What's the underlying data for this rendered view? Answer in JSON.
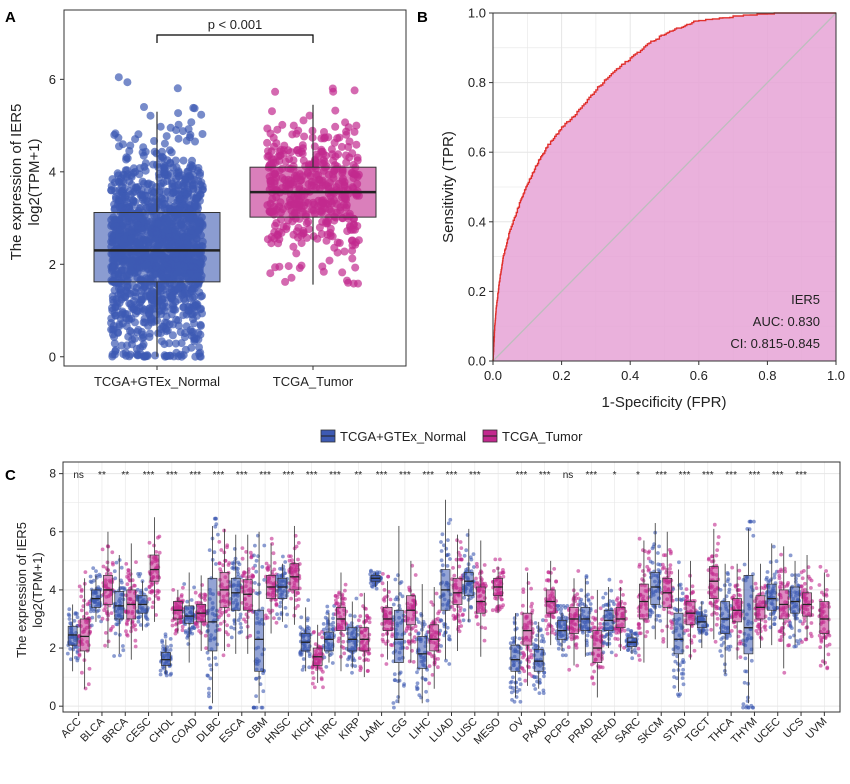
{
  "colors": {
    "normal": "#3d5ab3",
    "tumor": "#c2298e",
    "roc_line": "#e0302c",
    "roc_fill": "#e6a3d6",
    "diag": "#bdbdbd",
    "grid": "#e6e6e6"
  },
  "panels": {
    "a": "A",
    "b": "B",
    "c": "C"
  },
  "chart_data": [
    {
      "type": "box",
      "panel": "A",
      "ylabel_line1": "The expression of IER5",
      "ylabel_line2": "log2(TPM+1)",
      "categories": [
        "TCGA+GTEx_Normal",
        "TCGA_Tumor"
      ],
      "yticks": [
        0,
        2,
        4,
        6
      ],
      "ylim": [
        -0.2,
        7.5
      ],
      "annotation": "p < 0.001",
      "boxes": [
        {
          "name": "TCGA+GTEx_Normal",
          "q1": 1.62,
          "median": 2.3,
          "q3": 3.12,
          "lower": 0.0,
          "upper": 5.3,
          "point_min": 0.0,
          "point_max": 6.05,
          "n_points": 1400
        },
        {
          "name": "TCGA_Tumor",
          "q1": 3.02,
          "median": 3.56,
          "q3": 4.1,
          "lower": 1.56,
          "upper": 5.45,
          "point_min": 1.55,
          "point_max": 5.85,
          "n_points": 420
        }
      ]
    },
    {
      "type": "roc",
      "panel": "B",
      "xlabel": "1-Specificity (FPR)",
      "ylabel": "Sensitivity (TPR)",
      "xlim": [
        0,
        1
      ],
      "ylim": [
        0,
        1
      ],
      "ticks": [
        "0.0",
        "0.2",
        "0.4",
        "0.6",
        "0.8",
        "1.0"
      ],
      "grid": true,
      "curve": [
        [
          0,
          0
        ],
        [
          0.005,
          0.1
        ],
        [
          0.01,
          0.16
        ],
        [
          0.02,
          0.24
        ],
        [
          0.03,
          0.3
        ],
        [
          0.05,
          0.38
        ],
        [
          0.08,
          0.46
        ],
        [
          0.1,
          0.51
        ],
        [
          0.13,
          0.57
        ],
        [
          0.16,
          0.62
        ],
        [
          0.2,
          0.67
        ],
        [
          0.25,
          0.72
        ],
        [
          0.3,
          0.78
        ],
        [
          0.35,
          0.83
        ],
        [
          0.4,
          0.87
        ],
        [
          0.45,
          0.91
        ],
        [
          0.5,
          0.94
        ],
        [
          0.55,
          0.96
        ],
        [
          0.6,
          0.98
        ],
        [
          0.7,
          0.99
        ],
        [
          0.8,
          0.997
        ],
        [
          0.9,
          1.0
        ],
        [
          1.0,
          1.0
        ]
      ],
      "legend_lines": [
        "IER5",
        "AUC: 0.830",
        "CI: 0.815-0.845"
      ]
    },
    {
      "type": "grouped-box",
      "panel": "C",
      "legend": [
        "TCGA+GTEx_Normal",
        "TCGA_Tumor"
      ],
      "ylabel_line1": "The expression of IER5",
      "ylabel_line2": "log2(TPM+1)",
      "yticks": [
        0,
        2,
        4,
        6,
        8
      ],
      "ylim": [
        -0.2,
        8.4
      ],
      "categories": [
        "ACC",
        "BLCA",
        "BRCA",
        "CESC",
        "CHOL",
        "COAD",
        "DLBC",
        "ESCA",
        "GBM",
        "HNSC",
        "KICH",
        "KIRC",
        "KIRP",
        "LAML",
        "LGG",
        "LIHC",
        "LUAD",
        "LUSC",
        "MESO",
        "OV",
        "PAAD",
        "PCPG",
        "PRAD",
        "READ",
        "SARC",
        "SKCM",
        "STAD",
        "TGCT",
        "THCA",
        "THYM",
        "UCEC",
        "UCS",
        "UVM"
      ],
      "significance": [
        "ns",
        "**",
        "**",
        "***",
        "***",
        "***",
        "***",
        "***",
        "***",
        "***",
        "***",
        "***",
        "**",
        "***",
        "***",
        "***",
        "***",
        "***",
        "",
        "***",
        "***",
        "ns",
        "***",
        "*",
        "*",
        "***",
        "***",
        "***",
        "***",
        "***",
        "***",
        "***",
        ""
      ],
      "normal": [
        {
          "q1": 2.1,
          "median": 2.45,
          "q3": 2.75,
          "lower": 1.2,
          "upper": 3.5
        },
        {
          "q1": 3.4,
          "median": 3.7,
          "q3": 4.0,
          "lower": 2.9,
          "upper": 4.5
        },
        {
          "q1": 3.0,
          "median": 3.45,
          "q3": 3.95,
          "lower": 1.8,
          "upper": 5.2
        },
        {
          "q1": 3.2,
          "median": 3.5,
          "q3": 3.8,
          "lower": 2.6,
          "upper": 4.3
        },
        {
          "q1": 1.4,
          "median": 1.6,
          "q3": 1.85,
          "lower": 1.1,
          "upper": 2.3
        },
        {
          "q1": 2.85,
          "median": 3.1,
          "q3": 3.45,
          "lower": 1.5,
          "upper": 4.6
        },
        {
          "q1": 1.9,
          "median": 2.9,
          "q3": 4.4,
          "lower": 0.1,
          "upper": 6.2
        },
        {
          "q1": 3.3,
          "median": 3.9,
          "q3": 4.4,
          "lower": 1.8,
          "upper": 5.9
        },
        {
          "q1": 1.2,
          "median": 2.3,
          "q3": 3.3,
          "lower": 0.1,
          "upper": 6.0
        },
        {
          "q1": 3.7,
          "median": 4.1,
          "q3": 4.4,
          "lower": 2.9,
          "upper": 4.9
        },
        {
          "q1": 1.9,
          "median": 2.2,
          "q3": 2.5,
          "lower": 1.2,
          "upper": 3.4
        },
        {
          "q1": 1.9,
          "median": 2.3,
          "q3": 2.55,
          "lower": 1.5,
          "upper": 3.2
        },
        {
          "q1": 1.9,
          "median": 2.3,
          "q3": 2.7,
          "lower": 1.3,
          "upper": 3.6
        },
        {
          "q1": 4.3,
          "median": 4.4,
          "q3": 4.5,
          "lower": 4.1,
          "upper": 4.6
        },
        {
          "q1": 1.5,
          "median": 2.3,
          "q3": 3.3,
          "lower": 0.1,
          "upper": 6.2
        },
        {
          "q1": 1.3,
          "median": 1.8,
          "q3": 2.4,
          "lower": 0.1,
          "upper": 4.2
        },
        {
          "q1": 3.3,
          "median": 4.0,
          "q3": 4.7,
          "lower": 1.6,
          "upper": 7.1
        },
        {
          "q1": 3.8,
          "median": 4.3,
          "q3": 4.6,
          "lower": 2.9,
          "upper": 6.1
        },
        null,
        {
          "q1": 1.2,
          "median": 1.6,
          "q3": 2.1,
          "lower": 0.3,
          "upper": 3.2
        },
        {
          "q1": 1.2,
          "median": 1.55,
          "q3": 1.95,
          "lower": 0.6,
          "upper": 2.9
        },
        {
          "q1": 2.3,
          "median": 2.6,
          "q3": 2.95,
          "lower": 1.9,
          "upper": 3.2
        },
        {
          "q1": 2.6,
          "median": 3.0,
          "q3": 3.4,
          "lower": 1.7,
          "upper": 4.4
        },
        {
          "q1": 2.6,
          "median": 2.95,
          "q3": 3.3,
          "lower": 2.0,
          "upper": 4.1
        },
        {
          "q1": 2.05,
          "median": 2.2,
          "q3": 2.35,
          "lower": 1.8,
          "upper": 2.5
        },
        {
          "q1": 3.5,
          "median": 4.1,
          "q3": 4.6,
          "lower": 2.3,
          "upper": 6.3
        },
        {
          "q1": 1.8,
          "median": 2.3,
          "q3": 3.2,
          "lower": 0.5,
          "upper": 4.7
        },
        {
          "q1": 2.7,
          "median": 2.9,
          "q3": 3.1,
          "lower": 2.0,
          "upper": 3.6
        },
        {
          "q1": 2.5,
          "median": 3.0,
          "q3": 3.6,
          "lower": 1.1,
          "upper": 4.9
        },
        {
          "q1": 1.8,
          "median": 2.7,
          "q3": 4.5,
          "lower": 0.1,
          "upper": 6.1
        },
        {
          "q1": 3.3,
          "median": 3.7,
          "q3": 4.2,
          "lower": 2.1,
          "upper": 5.6
        },
        {
          "q1": 3.2,
          "median": 3.6,
          "q3": 4.1,
          "lower": 2.1,
          "upper": 5.0
        },
        null
      ],
      "tumor": [
        {
          "q1": 1.9,
          "median": 2.4,
          "q3": 3.0,
          "lower": 0.6,
          "upper": 4.4
        },
        {
          "q1": 3.5,
          "median": 4.0,
          "q3": 4.5,
          "lower": 2.0,
          "upper": 6.0
        },
        {
          "q1": 3.0,
          "median": 3.5,
          "q3": 4.0,
          "lower": 1.6,
          "upper": 5.6
        },
        {
          "q1": 4.3,
          "median": 4.7,
          "q3": 5.2,
          "lower": 2.9,
          "upper": 6.5
        },
        {
          "q1": 3.0,
          "median": 3.3,
          "q3": 3.6,
          "lower": 2.5,
          "upper": 4.0
        },
        {
          "q1": 2.9,
          "median": 3.2,
          "q3": 3.5,
          "lower": 1.9,
          "upper": 4.5
        },
        {
          "q1": 3.4,
          "median": 4.0,
          "q3": 4.6,
          "lower": 1.9,
          "upper": 6.1
        },
        {
          "q1": 3.3,
          "median": 3.85,
          "q3": 4.35,
          "lower": 1.8,
          "upper": 5.9
        },
        {
          "q1": 3.7,
          "median": 4.1,
          "q3": 4.5,
          "lower": 2.5,
          "upper": 5.6
        },
        {
          "q1": 4.0,
          "median": 4.45,
          "q3": 4.9,
          "lower": 2.8,
          "upper": 6.2
        },
        {
          "q1": 1.4,
          "median": 1.7,
          "q3": 2.0,
          "lower": 0.8,
          "upper": 2.8
        },
        {
          "q1": 2.6,
          "median": 3.0,
          "q3": 3.4,
          "lower": 1.2,
          "upper": 4.6
        },
        {
          "q1": 1.9,
          "median": 2.3,
          "q3": 2.7,
          "lower": 1.0,
          "upper": 3.9
        },
        {
          "q1": 2.6,
          "median": 3.0,
          "q3": 3.4,
          "lower": 1.6,
          "upper": 4.3
        },
        {
          "q1": 2.8,
          "median": 3.3,
          "q3": 3.8,
          "lower": 1.5,
          "upper": 5.0
        },
        {
          "q1": 1.9,
          "median": 2.3,
          "q3": 2.8,
          "lower": 0.6,
          "upper": 4.1
        },
        {
          "q1": 3.5,
          "median": 3.9,
          "q3": 4.4,
          "lower": 1.9,
          "upper": 5.9
        },
        {
          "q1": 3.2,
          "median": 3.6,
          "q3": 4.1,
          "lower": 1.7,
          "upper": 5.7
        },
        {
          "q1": 3.8,
          "median": 4.1,
          "q3": 4.4,
          "lower": 3.2,
          "upper": 4.8
        },
        {
          "q1": 2.1,
          "median": 2.6,
          "q3": 3.2,
          "lower": 0.7,
          "upper": 4.6
        },
        {
          "q1": 3.2,
          "median": 3.6,
          "q3": 4.0,
          "lower": 2.1,
          "upper": 5.0
        },
        {
          "q1": 2.5,
          "median": 3.0,
          "q3": 3.4,
          "lower": 1.4,
          "upper": 4.4
        },
        {
          "q1": 1.5,
          "median": 2.0,
          "q3": 2.6,
          "lower": 0.3,
          "upper": 4.0
        },
        {
          "q1": 2.7,
          "median": 3.0,
          "q3": 3.4,
          "lower": 1.9,
          "upper": 4.1
        },
        {
          "q1": 3.0,
          "median": 3.6,
          "q3": 4.2,
          "lower": 1.5,
          "upper": 5.7
        },
        {
          "q1": 3.4,
          "median": 3.9,
          "q3": 4.4,
          "lower": 2.0,
          "upper": 6.0
        },
        {
          "q1": 2.8,
          "median": 3.2,
          "q3": 3.6,
          "lower": 1.6,
          "upper": 5.0
        },
        {
          "q1": 3.7,
          "median": 4.3,
          "q3": 4.8,
          "lower": 2.3,
          "upper": 6.1
        },
        {
          "q1": 2.9,
          "median": 3.3,
          "q3": 3.7,
          "lower": 1.6,
          "upper": 4.9
        },
        {
          "q1": 3.0,
          "median": 3.4,
          "q3": 3.8,
          "lower": 2.0,
          "upper": 4.9
        },
        {
          "q1": 3.0,
          "median": 3.5,
          "q3": 4.0,
          "lower": 1.3,
          "upper": 5.5
        },
        {
          "q1": 3.1,
          "median": 3.5,
          "q3": 3.9,
          "lower": 2.3,
          "upper": 5.2
        },
        {
          "q1": 2.5,
          "median": 3.0,
          "q3": 3.6,
          "lower": 1.4,
          "upper": 4.6
        }
      ]
    }
  ]
}
